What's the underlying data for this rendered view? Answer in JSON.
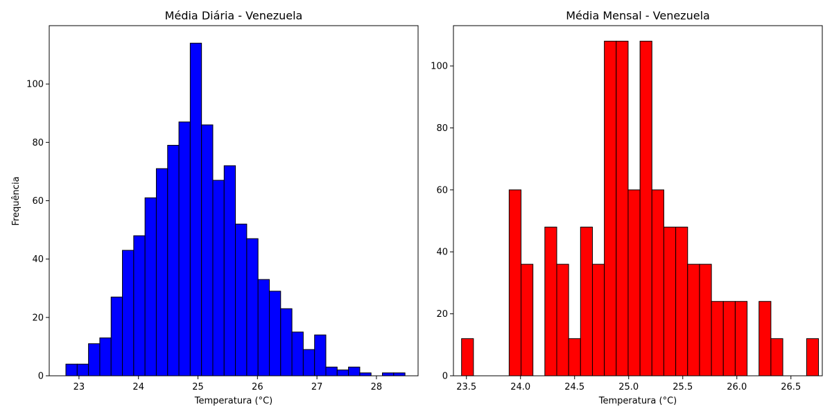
{
  "chart_data": [
    {
      "type": "bar",
      "title": "Média Diária - Venezuela",
      "xlabel": "Temperatura (°C)",
      "ylabel": "Frequência",
      "xlim": [
        22.5,
        28.7
      ],
      "ylim": [
        0,
        120
      ],
      "xticks": [
        23,
        24,
        25,
        26,
        27,
        28
      ],
      "yticks": [
        0,
        20,
        40,
        60,
        80,
        100
      ],
      "bar_color": "#0000ff",
      "edge_color": "#000000",
      "grid": false,
      "bins": [
        {
          "x0": 22.78,
          "x1": 22.97,
          "count": 4
        },
        {
          "x0": 22.97,
          "x1": 23.16,
          "count": 4
        },
        {
          "x0": 23.16,
          "x1": 23.35,
          "count": 11
        },
        {
          "x0": 23.35,
          "x1": 23.54,
          "count": 13
        },
        {
          "x0": 23.54,
          "x1": 23.73,
          "count": 27
        },
        {
          "x0": 23.73,
          "x1": 23.92,
          "count": 43
        },
        {
          "x0": 23.92,
          "x1": 24.11,
          "count": 48
        },
        {
          "x0": 24.11,
          "x1": 24.3,
          "count": 61
        },
        {
          "x0": 24.3,
          "x1": 24.49,
          "count": 71
        },
        {
          "x0": 24.49,
          "x1": 24.68,
          "count": 79
        },
        {
          "x0": 24.68,
          "x1": 24.87,
          "count": 87
        },
        {
          "x0": 24.87,
          "x1": 25.06,
          "count": 114
        },
        {
          "x0": 25.06,
          "x1": 25.25,
          "count": 86
        },
        {
          "x0": 25.25,
          "x1": 25.44,
          "count": 67
        },
        {
          "x0": 25.44,
          "x1": 25.63,
          "count": 72
        },
        {
          "x0": 25.63,
          "x1": 25.82,
          "count": 52
        },
        {
          "x0": 25.82,
          "x1": 26.01,
          "count": 47
        },
        {
          "x0": 26.01,
          "x1": 26.2,
          "count": 33
        },
        {
          "x0": 26.2,
          "x1": 26.39,
          "count": 29
        },
        {
          "x0": 26.39,
          "x1": 26.58,
          "count": 23
        },
        {
          "x0": 26.58,
          "x1": 26.77,
          "count": 15
        },
        {
          "x0": 26.77,
          "x1": 26.96,
          "count": 9
        },
        {
          "x0": 26.96,
          "x1": 27.15,
          "count": 14
        },
        {
          "x0": 27.15,
          "x1": 27.34,
          "count": 3
        },
        {
          "x0": 27.34,
          "x1": 27.53,
          "count": 2
        },
        {
          "x0": 27.53,
          "x1": 27.72,
          "count": 3
        },
        {
          "x0": 27.72,
          "x1": 27.91,
          "count": 1
        },
        {
          "x0": 27.91,
          "x1": 28.1,
          "count": 0
        },
        {
          "x0": 28.1,
          "x1": 28.29,
          "count": 1
        },
        {
          "x0": 28.29,
          "x1": 28.48,
          "count": 1
        }
      ]
    },
    {
      "type": "bar",
      "title": "Média Mensal - Venezuela",
      "xlabel": "Temperatura (°C)",
      "ylabel": "",
      "xlim": [
        23.38,
        26.79
      ],
      "ylim": [
        0,
        113
      ],
      "xticks": [
        23.5,
        24.0,
        24.5,
        25.0,
        25.5,
        26.0,
        26.5
      ],
      "yticks": [
        0,
        20,
        40,
        60,
        80,
        100
      ],
      "bar_color": "#ff0000",
      "edge_color": "#000000",
      "grid": false,
      "bins": [
        {
          "x0": 23.455,
          "x1": 23.565,
          "count": 12
        },
        {
          "x0": 23.565,
          "x1": 23.675,
          "count": 0
        },
        {
          "x0": 23.675,
          "x1": 23.785,
          "count": 0
        },
        {
          "x0": 23.785,
          "x1": 23.895,
          "count": 0
        },
        {
          "x0": 23.895,
          "x1": 24.005,
          "count": 60
        },
        {
          "x0": 24.005,
          "x1": 24.115,
          "count": 36
        },
        {
          "x0": 24.115,
          "x1": 24.225,
          "count": 0
        },
        {
          "x0": 24.225,
          "x1": 24.335,
          "count": 48
        },
        {
          "x0": 24.335,
          "x1": 24.445,
          "count": 36
        },
        {
          "x0": 24.445,
          "x1": 24.555,
          "count": 12
        },
        {
          "x0": 24.555,
          "x1": 24.665,
          "count": 48
        },
        {
          "x0": 24.665,
          "x1": 24.775,
          "count": 36
        },
        {
          "x0": 24.775,
          "x1": 24.885,
          "count": 108
        },
        {
          "x0": 24.885,
          "x1": 24.995,
          "count": 108
        },
        {
          "x0": 24.995,
          "x1": 25.105,
          "count": 60
        },
        {
          "x0": 25.105,
          "x1": 25.215,
          "count": 108
        },
        {
          "x0": 25.215,
          "x1": 25.325,
          "count": 60
        },
        {
          "x0": 25.325,
          "x1": 25.435,
          "count": 48
        },
        {
          "x0": 25.435,
          "x1": 25.545,
          "count": 48
        },
        {
          "x0": 25.545,
          "x1": 25.655,
          "count": 36
        },
        {
          "x0": 25.655,
          "x1": 25.765,
          "count": 36
        },
        {
          "x0": 25.765,
          "x1": 25.875,
          "count": 24
        },
        {
          "x0": 25.875,
          "x1": 25.985,
          "count": 24
        },
        {
          "x0": 25.985,
          "x1": 26.095,
          "count": 24
        },
        {
          "x0": 26.095,
          "x1": 26.205,
          "count": 0
        },
        {
          "x0": 26.205,
          "x1": 26.315,
          "count": 24
        },
        {
          "x0": 26.315,
          "x1": 26.425,
          "count": 12
        },
        {
          "x0": 26.425,
          "x1": 26.535,
          "count": 0
        },
        {
          "x0": 26.535,
          "x1": 26.645,
          "count": 0
        },
        {
          "x0": 26.645,
          "x1": 26.755,
          "count": 12
        }
      ]
    }
  ]
}
